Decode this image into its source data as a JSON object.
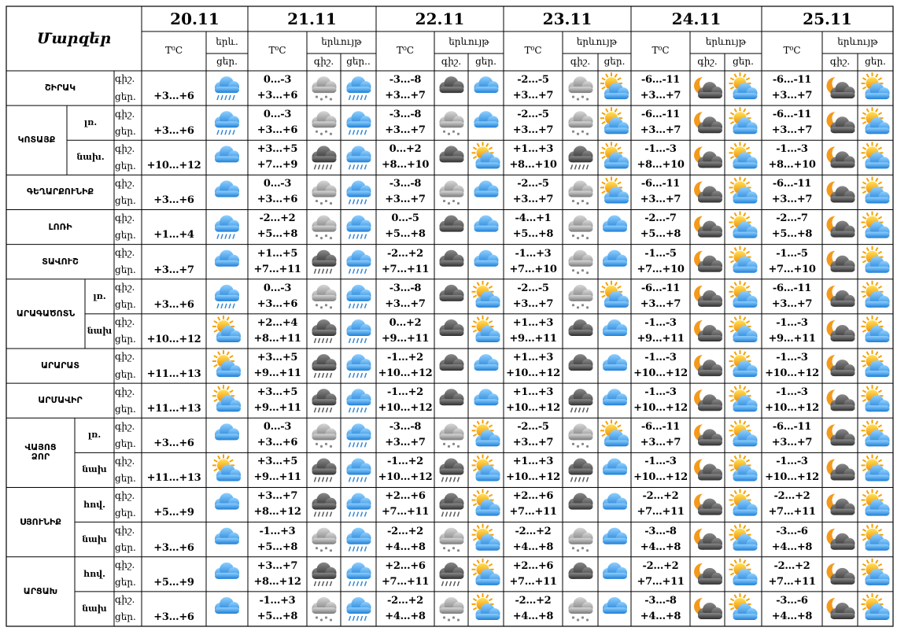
{
  "header": {
    "title": "Մարզեր",
    "days": [
      {
        "date": "20.11",
        "temp": "T⁰C",
        "phenomenon": "երև.",
        "cols": [
          "ցեր."
        ]
      },
      {
        "date": "21.11",
        "temp": "T⁰C",
        "phenomenon": "երևույթ",
        "cols": [
          "գիշ.",
          "ցեր.."
        ]
      },
      {
        "date": "22.11",
        "temp": "T⁰C",
        "phenomenon": "երևույթ",
        "cols": [
          "գիշ.",
          "ցեր."
        ]
      },
      {
        "date": "23.11",
        "temp": "T⁰C",
        "phenomenon": "երևույթ",
        "cols": [
          "գիշ.",
          "ցեր."
        ]
      },
      {
        "date": "24.11",
        "temp": "T⁰C",
        "phenomenon": "երևույթ",
        "cols": [
          "գիշ.",
          "ցեր."
        ]
      },
      {
        "date": "25.11",
        "temp": "T⁰C",
        "phenomenon": "երևույթ",
        "cols": [
          "գիշ.",
          "ցեր."
        ]
      }
    ]
  },
  "regions": [
    {
      "name": "ՇԻՐԱԿ",
      "rows": [
        {
          "labels": [
            "գիշ.",
            "ցեր."
          ],
          "today": "+3…+6",
          "temps": [
            [
              "0…-3",
              "+3…+6"
            ],
            [
              "-3…-8",
              "+3…+7"
            ],
            [
              "-2…-5",
              "+3…+7"
            ],
            [
              "-6…-11",
              "+3…+7"
            ],
            [
              "-6…-11",
              "+3…+7"
            ]
          ]
        }
      ]
    },
    {
      "name": "ԿՈՏԱՅՔ",
      "rows": [
        {
          "sub": "լռ.",
          "labels": [
            "գիշ.",
            "ցեր."
          ],
          "today": "+3…+6",
          "temps": [
            [
              "0…-3",
              "+3…+6"
            ],
            [
              "-3…-8",
              "+3…+7"
            ],
            [
              "-2…-5",
              "+3…+7"
            ],
            [
              "-6…-11",
              "+3…+7"
            ],
            [
              "-6…-11",
              "+3…+7"
            ]
          ]
        },
        {
          "sub": "նախ.",
          "labels": [
            "գիշ.",
            "ցեր."
          ],
          "today": "+10…+12",
          "temps": [
            [
              "+3…+5",
              "+7…+9"
            ],
            [
              "0…+2",
              "+8…+10"
            ],
            [
              "+1…+3",
              "+8…+10"
            ],
            [
              "-1…-3",
              "+8…+10"
            ],
            [
              "-1…-3",
              "+8…+10"
            ]
          ]
        }
      ]
    },
    {
      "name": "ԳԵՂԱՐՔՈՒՆԻՔ",
      "rows": [
        {
          "labels": [
            "գիշ.",
            "ցեր."
          ],
          "today": "+3…+6",
          "temps": [
            [
              "0…-3",
              "+3…+6"
            ],
            [
              "-3…-8",
              "+3…+7"
            ],
            [
              "-2…-5",
              "+3…+7"
            ],
            [
              "-6…-11",
              "+3…+7"
            ],
            [
              "-6…-11",
              "+3…+7"
            ]
          ]
        }
      ]
    },
    {
      "name": "ԼՈՌԻ",
      "rows": [
        {
          "labels": [
            "գիշ.",
            "ցեր."
          ],
          "today": "+1…+4",
          "temps": [
            [
              "-2…+2",
              "+5…+8"
            ],
            [
              "0…-5",
              "+5…+8"
            ],
            [
              "-4…+1",
              "+5…+8"
            ],
            [
              "-2…-7",
              "+5…+8"
            ],
            [
              "-2…-7",
              "+5…+8"
            ]
          ]
        }
      ]
    },
    {
      "name": "ՏԱՎՈՒՇ",
      "rows": [
        {
          "labels": [
            "գիշ.",
            "ցեր."
          ],
          "today": "+3…+7",
          "temps": [
            [
              "+1…+5",
              "+7…+11"
            ],
            [
              "-2…+2",
              "+7…+11"
            ],
            [
              "-1…+3",
              "+7…+10"
            ],
            [
              "-1…-5",
              "+7…+10"
            ],
            [
              "-1…-5",
              "+7…+10"
            ]
          ]
        }
      ]
    },
    {
      "name": "ԱՐԱԳԱԾՈՏՆ",
      "rows": [
        {
          "sub": "լռ.",
          "labels": [
            "գիշ.",
            "ցեր."
          ],
          "today": "+3…+6",
          "temps": [
            [
              "0…-3",
              "+3…+6"
            ],
            [
              "-3…-8",
              "+3…+7"
            ],
            [
              "-2…-5",
              "+3…+7"
            ],
            [
              "-6…-11",
              "+3…+7"
            ],
            [
              "-6…-11",
              "+3…+7"
            ]
          ]
        },
        {
          "sub": "նախ",
          "labels": [
            "գիշ.",
            "ցեր."
          ],
          "today": "+10…+12",
          "temps": [
            [
              "+2…+4",
              "+8…+11"
            ],
            [
              "0…+2",
              "+9…+11"
            ],
            [
              "+1…+3",
              "+9…+11"
            ],
            [
              "-1…-3",
              "+9…+11"
            ],
            [
              "-1…-3",
              "+9…+11"
            ]
          ]
        }
      ]
    },
    {
      "name": "ԱՐԱՐԱՏ",
      "rows": [
        {
          "labels": [
            "գիշ.",
            "ցեր."
          ],
          "today": "+11…+13",
          "temps": [
            [
              "+3…+5",
              "+9…+11"
            ],
            [
              "-1…+2",
              "+10…+12"
            ],
            [
              "+1…+3",
              "+10…+12"
            ],
            [
              "-1…-3",
              "+10…+12"
            ],
            [
              "-1…-3",
              "+10…+12"
            ]
          ]
        }
      ]
    },
    {
      "name": "ԱՐՄԱՎԻՐ",
      "rows": [
        {
          "labels": [
            "գիշ.",
            "ցեր."
          ],
          "today": "+11…+13",
          "temps": [
            [
              "+3…+5",
              "+9…+11"
            ],
            [
              "-1…+2",
              "+10…+12"
            ],
            [
              "+1…+3",
              "+10…+12"
            ],
            [
              "-1…-3",
              "+10…+12"
            ],
            [
              "-1…-3",
              "+10…+12"
            ]
          ]
        }
      ]
    },
    {
      "name": "ՎԱՅՈՑ ՁՈՐ",
      "rows": [
        {
          "sub": "լռ.",
          "labels": [
            "գիշ.",
            "ցեր."
          ],
          "today": "+3…+6",
          "temps": [
            [
              "0…-3",
              "+3…+6"
            ],
            [
              "-3…-8",
              "+3…+7"
            ],
            [
              "-2…-5",
              "+3…+7"
            ],
            [
              "-6…-11",
              "+3…+7"
            ],
            [
              "-6…-11",
              "+3…+7"
            ]
          ]
        },
        {
          "sub": "նախ",
          "labels": [
            "գիշ.",
            "ցեր."
          ],
          "today": "+11…+13",
          "temps": [
            [
              "+3…+5",
              "+9…+11"
            ],
            [
              "-1…+2",
              "+10…+12"
            ],
            [
              "+1…+3",
              "+10…+12"
            ],
            [
              "-1…-3",
              "+10…+12"
            ],
            [
              "-1…-3",
              "+10…+12"
            ]
          ]
        }
      ]
    },
    {
      "name": "ՍՅՈՒՆԻՔ",
      "rows": [
        {
          "sub": "հով.",
          "labels": [
            "գիշ.",
            "ցեր."
          ],
          "today": "+5…+9",
          "temps": [
            [
              "+3…+7",
              "+8…+12"
            ],
            [
              "+2…+6",
              "+7…+11"
            ],
            [
              "+2…+6",
              "+7…+11"
            ],
            [
              "-2…+2",
              "+7…+11"
            ],
            [
              "-2…+2",
              "+7…+11"
            ]
          ]
        },
        {
          "sub": "նախ",
          "labels": [
            "գիշ.",
            "ցեր."
          ],
          "today": "+3…+6",
          "temps": [
            [
              "-1…+3",
              "+5…+8"
            ],
            [
              "-2…+2",
              "+4…+8"
            ],
            [
              "-2…+2",
              "+4…+8"
            ],
            [
              "-3…-8",
              "+4…+8"
            ],
            [
              "-3…-6",
              "+4…+8"
            ]
          ]
        }
      ]
    },
    {
      "name": "ԱՐՑԱԽ",
      "rows": [
        {
          "sub": "հով.",
          "labels": [
            "գիշ.",
            "ցեր."
          ],
          "today": "+5…+9",
          "temps": [
            [
              "+3…+7",
              "+8…+12"
            ],
            [
              "+2…+6",
              "+7…+11"
            ],
            [
              "+2…+6",
              "+7…+11"
            ],
            [
              "-2…+2",
              "+7…+11"
            ],
            [
              "-2…+2",
              "+7…+11"
            ]
          ]
        },
        {
          "sub": "նախ",
          "labels": [
            "գիշ.",
            "ցեր."
          ],
          "today": "+3…+6",
          "temps": [
            [
              "-1…+3",
              "+5…+8"
            ],
            [
              "-2…+2",
              "+4…+8"
            ],
            [
              "-2…+2",
              "+4…+8"
            ],
            [
              "-3…-8",
              "+4…+8"
            ],
            [
              "-3…-6",
              "+4…+8"
            ]
          ]
        }
      ]
    }
  ]
}
